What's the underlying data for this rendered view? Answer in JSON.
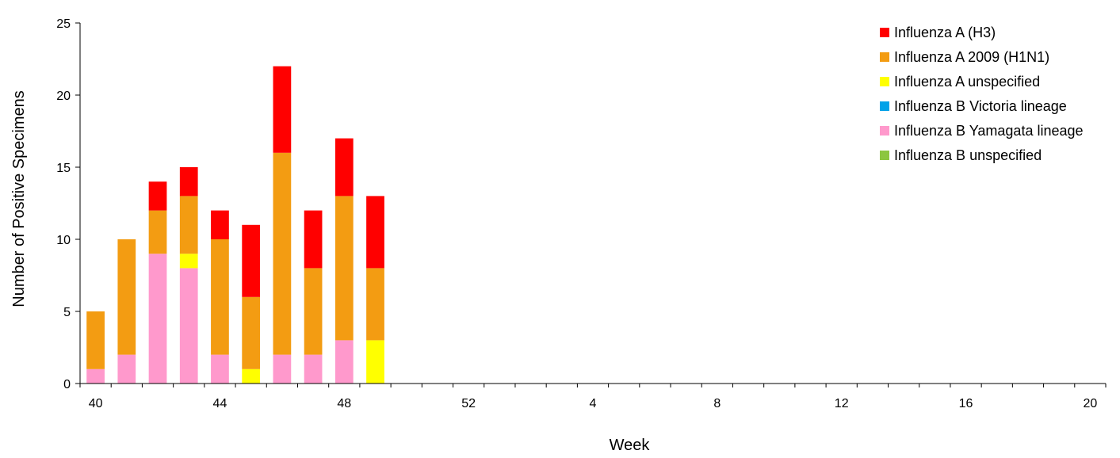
{
  "chart_data": {
    "type": "bar",
    "stacked": true,
    "xlabel": "Week",
    "ylabel": "Number of Positive Specimens",
    "ylim": [
      0,
      25
    ],
    "y_ticks": [
      0,
      5,
      10,
      15,
      20,
      25
    ],
    "grid": false,
    "legend_position": "top-right",
    "x_tick_labels": [
      "40",
      "44",
      "48",
      "52",
      "4",
      "8",
      "12",
      "16",
      "20"
    ],
    "categories": [
      "40",
      "41",
      "42",
      "43",
      "44",
      "45",
      "46",
      "47",
      "48",
      "49",
      "50",
      "51",
      "52",
      "1",
      "2",
      "3",
      "4",
      "5",
      "6",
      "7",
      "8",
      "9",
      "10",
      "11",
      "12",
      "13",
      "14",
      "15",
      "16",
      "17",
      "18",
      "19",
      "20"
    ],
    "series": [
      {
        "name": "Influenza B Yamagata lineage",
        "color": "#ff99cc",
        "values": [
          1,
          2,
          9,
          8,
          2,
          0,
          2,
          2,
          3,
          0,
          0,
          0,
          0,
          0,
          0,
          0,
          0,
          0,
          0,
          0,
          0,
          0,
          0,
          0,
          0,
          0,
          0,
          0,
          0,
          0,
          0,
          0,
          0
        ]
      },
      {
        "name": "Influenza A unspecified",
        "color": "#ffff00",
        "values": [
          0,
          0,
          0,
          1,
          0,
          1,
          0,
          0,
          0,
          3,
          0,
          0,
          0,
          0,
          0,
          0,
          0,
          0,
          0,
          0,
          0,
          0,
          0,
          0,
          0,
          0,
          0,
          0,
          0,
          0,
          0,
          0,
          0
        ]
      },
      {
        "name": "Influenza A 2009 (H1N1)",
        "color": "#f39c12",
        "values": [
          4,
          8,
          3,
          4,
          8,
          5,
          14,
          6,
          10,
          5,
          0,
          0,
          0,
          0,
          0,
          0,
          0,
          0,
          0,
          0,
          0,
          0,
          0,
          0,
          0,
          0,
          0,
          0,
          0,
          0,
          0,
          0,
          0
        ]
      },
      {
        "name": "Influenza A (H3)",
        "color": "#ff0000",
        "values": [
          0,
          0,
          2,
          2,
          2,
          5,
          6,
          4,
          4,
          5,
          0,
          0,
          0,
          0,
          0,
          0,
          0,
          0,
          0,
          0,
          0,
          0,
          0,
          0,
          0,
          0,
          0,
          0,
          0,
          0,
          0,
          0,
          0
        ]
      },
      {
        "name": "Influenza B Victoria lineage",
        "color": "#00a2e8",
        "values": [
          0,
          0,
          0,
          0,
          0,
          0,
          0,
          0,
          0,
          0,
          0,
          0,
          0,
          0,
          0,
          0,
          0,
          0,
          0,
          0,
          0,
          0,
          0,
          0,
          0,
          0,
          0,
          0,
          0,
          0,
          0,
          0,
          0
        ]
      },
      {
        "name": "Influenza B unspecified",
        "color": "#8cc63f",
        "values": [
          0,
          0,
          0,
          0,
          0,
          0,
          0,
          0,
          0,
          0,
          0,
          0,
          0,
          0,
          0,
          0,
          0,
          0,
          0,
          0,
          0,
          0,
          0,
          0,
          0,
          0,
          0,
          0,
          0,
          0,
          0,
          0,
          0
        ]
      }
    ],
    "legend_order": [
      "Influenza A (H3)",
      "Influenza A 2009 (H1N1)",
      "Influenza A unspecified",
      "Influenza B Victoria lineage",
      "Influenza B Yamagata lineage",
      "Influenza B unspecified"
    ]
  }
}
